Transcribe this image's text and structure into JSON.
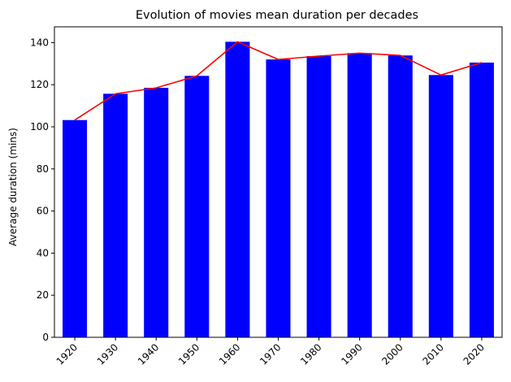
{
  "chart_data": {
    "type": "bar",
    "title": "Evolution of movies mean duration per decades",
    "xlabel": "",
    "ylabel": "Average duration (mins)",
    "categories": [
      "1920",
      "1930",
      "1940",
      "1950",
      "1960",
      "1970",
      "1980",
      "1990",
      "2000",
      "2010",
      "2020"
    ],
    "values": [
      103.2,
      115.7,
      118.5,
      124.2,
      140.4,
      132.0,
      133.6,
      135.0,
      133.9,
      124.6,
      130.5
    ],
    "ylim": [
      0,
      147.5
    ],
    "yticks": [
      0,
      20,
      40,
      60,
      80,
      100,
      120,
      140
    ],
    "grid": false,
    "bar_color": "#0000ff",
    "line_color": "#ff0000",
    "line_series": {
      "values": [
        103.2,
        115.7,
        118.5,
        124.2,
        140.4,
        132.0,
        133.6,
        135.0,
        133.9,
        124.6,
        130.5
      ]
    }
  }
}
